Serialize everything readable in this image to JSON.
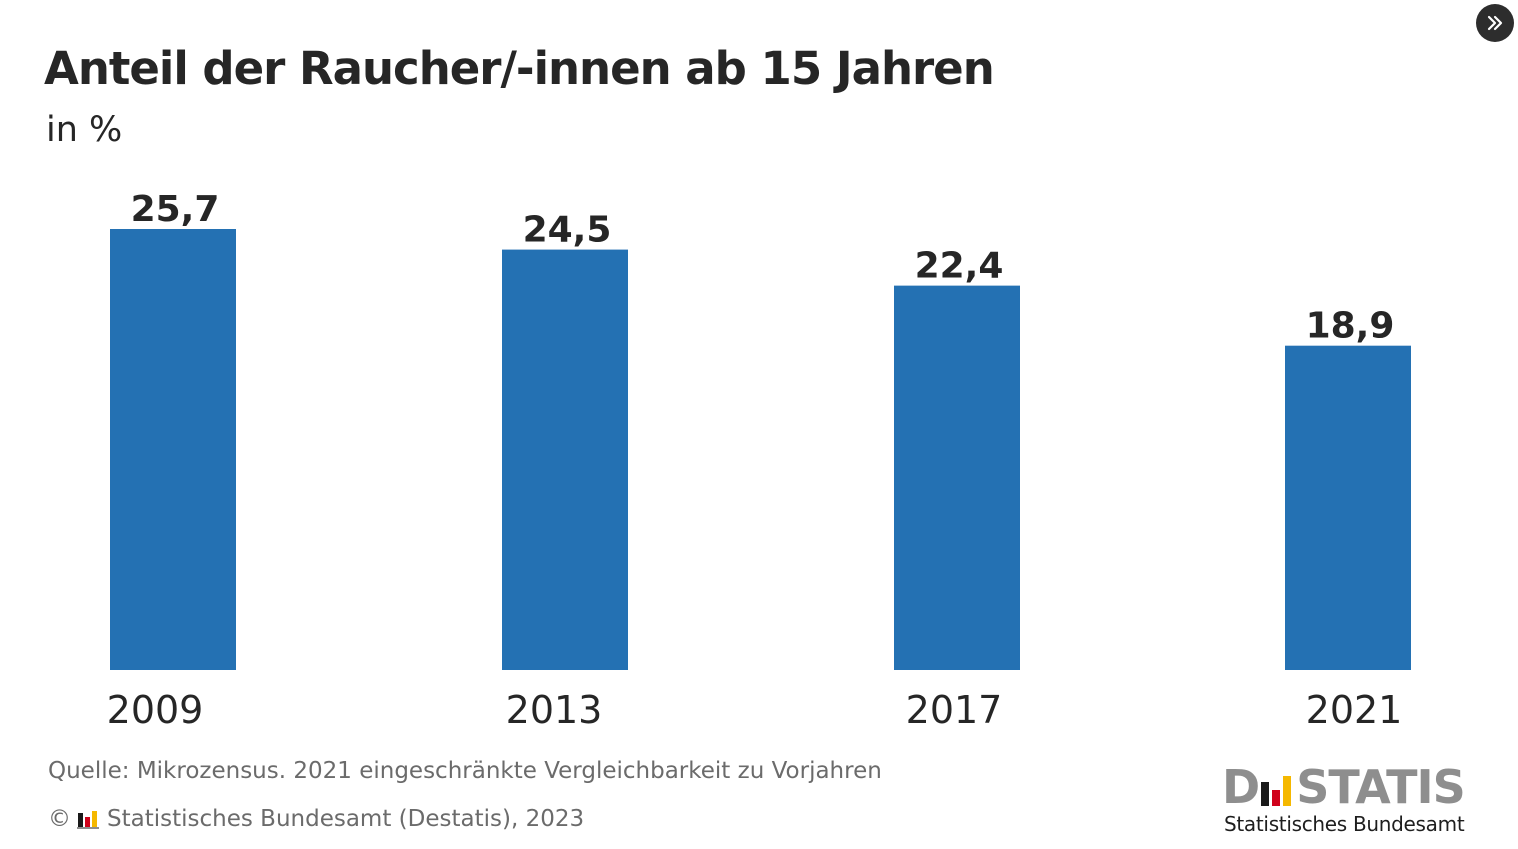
{
  "header": {
    "title": "Anteil der Raucher/-innen ab 15 Jahren",
    "subtitle": "in %"
  },
  "controls": {
    "expand_icon": "double-chevron-right-icon"
  },
  "chart_data": {
    "type": "bar",
    "title": "Anteil der Raucher/-innen ab 15 Jahren",
    "subtitle": "in %",
    "xlabel": "",
    "ylabel": "",
    "categories": [
      "2009",
      "2013",
      "2017",
      "2021"
    ],
    "values": [
      25.7,
      24.5,
      22.4,
      18.9
    ],
    "value_labels": [
      "25,7",
      "24,5",
      "22,4",
      "18,9"
    ],
    "ylim": [
      0,
      25.7
    ],
    "grid": false,
    "legend": "none",
    "bar_color": "#2471b3"
  },
  "footer": {
    "source": "Quelle: Mikrozensus. 2021 eingeschränkte Vergleichbarkeit zu Vorjahren",
    "copyright_symbol": "©",
    "copyright_text": "Statistisches Bundesamt (Destatis), 2023",
    "logo_prefix": "D",
    "logo_suffix": "STATIS",
    "logo_tagline": "Statistisches Bundesamt"
  },
  "colors": {
    "bar": "#2471b3",
    "flag_black": "#1a1a1a",
    "flag_red": "#d0021b",
    "flag_gold": "#f5b800",
    "logo_gray": "#8e8e8e"
  }
}
